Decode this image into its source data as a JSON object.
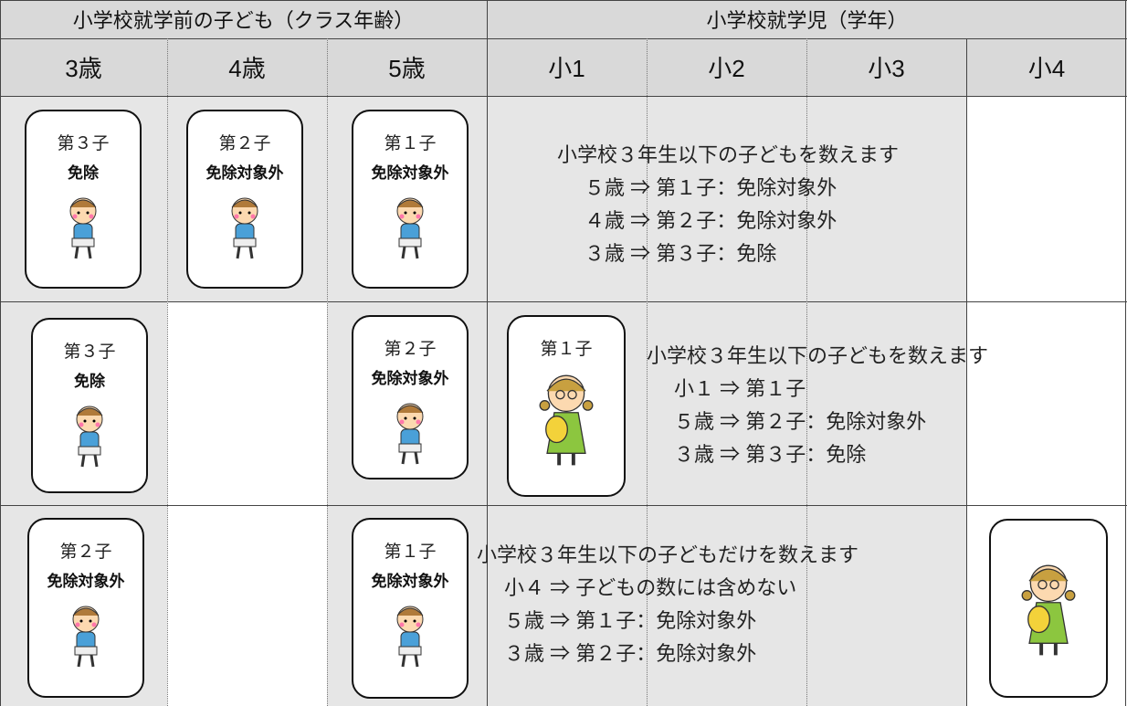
{
  "header": {
    "groups": [
      "小学校就学前の子ども（クラス年齢）",
      "小学校就学児（学年）"
    ],
    "columns": [
      "3歳",
      "4歳",
      "5歳",
      "小1",
      "小2",
      "小3",
      "小4"
    ]
  },
  "rows": [
    {
      "cards": [
        {
          "label": "第３子",
          "status": "免除"
        },
        {
          "label": "第２子",
          "status": "免除対象外"
        },
        {
          "label": "第１子",
          "status": "免除対象外"
        }
      ],
      "note": [
        "小学校３年生以下の子どもを数えます",
        "５歳 ⇒ 第１子：免除対象外",
        "４歳 ⇒ 第２子：免除対象外",
        "３歳 ⇒ 第３子：免除"
      ]
    },
    {
      "cards": [
        {
          "label": "第３子",
          "status": "免除"
        },
        {
          "label": "第２子",
          "status": "免除対象外"
        },
        {
          "label": "第１子"
        }
      ],
      "note": [
        "小学校３年生以下の子どもを数えます",
        "小１ ⇒ 第１子",
        "５歳 ⇒ 第２子：免除対象外",
        "３歳 ⇒ 第３子：免除"
      ]
    },
    {
      "cards": [
        {
          "label": "第２子",
          "status": "免除対象外"
        },
        {
          "label": "第１子",
          "status": "免除対象外"
        }
      ],
      "note": [
        "小学校３年生以下の子どもだけを数えます",
        "小４ ⇒ 子どもの数には含めない",
        "５歳 ⇒ 第１子：免除対象外",
        "３歳 ⇒ 第２子：免除対象外"
      ]
    }
  ]
}
